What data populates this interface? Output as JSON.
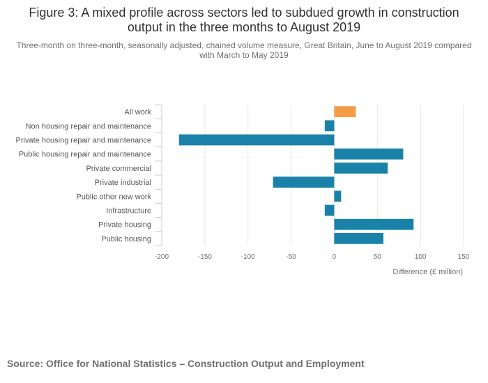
{
  "title": "Figure 3: A mixed profile across sectors led to subdued growth in construction output in the three months to August 2019",
  "subtitle": "Three-month on three-month, seasonally adjusted, chained volume measure, Great Britain, June to August 2019 compared with March to May 2019",
  "source": "Source: Office for National Statistics – Construction Output and Employment",
  "colors": {
    "highlight": "#f39d47",
    "bar": "#1a82a8",
    "grid": "#e6e6e6",
    "axis": "#cccccc",
    "text": "#707071"
  },
  "chart_data": {
    "type": "bar",
    "orientation": "horizontal",
    "categories": [
      "All work",
      "Non housing repair and maintenance",
      "Private housing repair and maintenance",
      "Public housing repair and maintenance",
      "Private commercial",
      "Private industrial",
      "Public other new work",
      "Infrastructure",
      "Private housing",
      "Public housing"
    ],
    "values": [
      25,
      -11,
      -180,
      80,
      62,
      -71,
      8,
      -11,
      92,
      57
    ],
    "highlight_index": 0,
    "xlabel": "Difference (£ million)",
    "xlim": [
      -200,
      150
    ],
    "xticks": [
      -200,
      -150,
      -100,
      -50,
      0,
      50,
      100,
      150
    ],
    "xtick_labels": [
      "-200",
      "-150",
      "-100",
      "-50",
      "0",
      "50",
      "100",
      "150"
    ],
    "grid": true
  }
}
